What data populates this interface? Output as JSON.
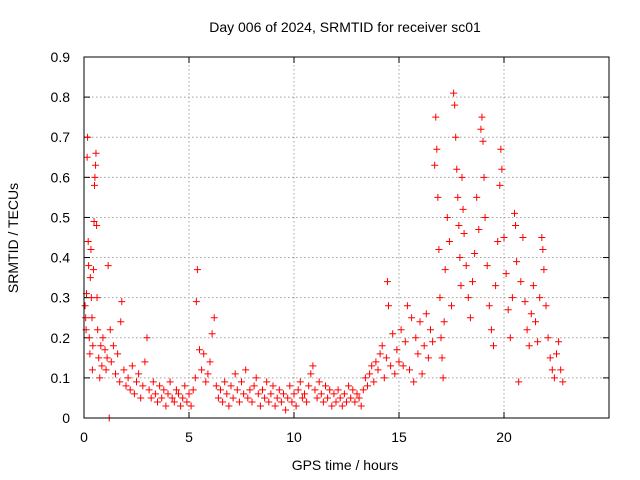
{
  "chart_data": {
    "type": "scatter",
    "title": "Day 006 of 2024, SRMTID for receiver sc01",
    "xlabel": "GPS time / hours",
    "ylabel": "SRMTID / TECUs",
    "xlim": [
      0,
      25
    ],
    "ylim": [
      0,
      0.9
    ],
    "xticks": [
      0,
      5,
      10,
      15,
      20
    ],
    "yticks": [
      0,
      0.1,
      0.2,
      0.3,
      0.4,
      0.5,
      0.6,
      0.7,
      0.8,
      0.9
    ],
    "xtick_labels": [
      "0",
      "5",
      "10",
      "15",
      "20"
    ],
    "ytick_labels": [
      "0",
      "0.1",
      "0.2",
      "0.3",
      "0.4",
      "0.5",
      "0.6",
      "0.7",
      "0.8",
      "0.9"
    ],
    "grid": true,
    "marker": "+",
    "color": "#ff0000",
    "series": [
      {
        "name": "sc01",
        "points": [
          [
            0.05,
            0.28
          ],
          [
            0.08,
            0.25
          ],
          [
            0.1,
            0.22
          ],
          [
            0.12,
            0.31
          ],
          [
            0.15,
            0.65
          ],
          [
            0.17,
            0.7
          ],
          [
            0.2,
            0.44
          ],
          [
            0.22,
            0.38
          ],
          [
            0.25,
            0.2
          ],
          [
            0.28,
            0.16
          ],
          [
            0.3,
            0.35
          ],
          [
            0.33,
            0.42
          ],
          [
            0.35,
            0.3
          ],
          [
            0.38,
            0.25
          ],
          [
            0.4,
            0.12
          ],
          [
            0.42,
            0.18
          ],
          [
            0.45,
            0.37
          ],
          [
            0.48,
            0.49
          ],
          [
            0.5,
            0.58
          ],
          [
            0.52,
            0.6
          ],
          [
            0.55,
            0.63
          ],
          [
            0.57,
            0.66
          ],
          [
            0.6,
            0.48
          ],
          [
            0.62,
            0.3
          ],
          [
            0.65,
            0.22
          ],
          [
            0.7,
            0.15
          ],
          [
            0.75,
            0.1
          ],
          [
            0.8,
            0.18
          ],
          [
            0.85,
            0.13
          ],
          [
            0.9,
            0.2
          ],
          [
            1.0,
            0.17
          ],
          [
            1.05,
            0.12
          ],
          [
            1.1,
            0.15
          ],
          [
            1.15,
            0.38
          ],
          [
            1.2,
            0.0
          ],
          [
            1.25,
            0.22
          ],
          [
            1.3,
            0.14
          ],
          [
            1.4,
            0.18
          ],
          [
            1.5,
            0.11
          ],
          [
            1.6,
            0.16
          ],
          [
            1.7,
            0.09
          ],
          [
            1.75,
            0.24
          ],
          [
            1.8,
            0.29
          ],
          [
            1.9,
            0.12
          ],
          [
            2.0,
            0.08
          ],
          [
            2.1,
            0.1
          ],
          [
            2.2,
            0.07
          ],
          [
            2.3,
            0.13
          ],
          [
            2.4,
            0.06
          ],
          [
            2.5,
            0.09
          ],
          [
            2.6,
            0.11
          ],
          [
            2.7,
            0.05
          ],
          [
            2.8,
            0.08
          ],
          [
            2.9,
            0.14
          ],
          [
            3.0,
            0.2
          ],
          [
            3.1,
            0.07
          ],
          [
            3.2,
            0.05
          ],
          [
            3.3,
            0.09
          ],
          [
            3.4,
            0.06
          ],
          [
            3.5,
            0.04
          ],
          [
            3.6,
            0.08
          ],
          [
            3.7,
            0.05
          ],
          [
            3.8,
            0.07
          ],
          [
            3.9,
            0.03
          ],
          [
            4.0,
            0.06
          ],
          [
            4.1,
            0.09
          ],
          [
            4.2,
            0.05
          ],
          [
            4.3,
            0.04
          ],
          [
            4.4,
            0.07
          ],
          [
            4.5,
            0.06
          ],
          [
            4.6,
            0.03
          ],
          [
            4.7,
            0.05
          ],
          [
            4.8,
            0.08
          ],
          [
            4.9,
            0.04
          ],
          [
            5.0,
            0.06
          ],
          [
            5.1,
            0.03
          ],
          [
            5.2,
            0.07
          ],
          [
            5.3,
            0.1
          ],
          [
            5.35,
            0.29
          ],
          [
            5.4,
            0.37
          ],
          [
            5.5,
            0.17
          ],
          [
            5.6,
            0.12
          ],
          [
            5.7,
            0.16
          ],
          [
            5.8,
            0.09
          ],
          [
            5.9,
            0.11
          ],
          [
            6.0,
            0.14
          ],
          [
            6.1,
            0.21
          ],
          [
            6.2,
            0.25
          ],
          [
            6.3,
            0.08
          ],
          [
            6.4,
            0.05
          ],
          [
            6.5,
            0.07
          ],
          [
            6.6,
            0.04
          ],
          [
            6.7,
            0.09
          ],
          [
            6.8,
            0.06
          ],
          [
            6.9,
            0.03
          ],
          [
            7.0,
            0.08
          ],
          [
            7.1,
            0.05
          ],
          [
            7.2,
            0.11
          ],
          [
            7.3,
            0.07
          ],
          [
            7.4,
            0.04
          ],
          [
            7.5,
            0.09
          ],
          [
            7.6,
            0.06
          ],
          [
            7.7,
            0.12
          ],
          [
            7.8,
            0.05
          ],
          [
            7.9,
            0.07
          ],
          [
            8.0,
            0.04
          ],
          [
            8.1,
            0.08
          ],
          [
            8.2,
            0.1
          ],
          [
            8.3,
            0.06
          ],
          [
            8.4,
            0.03
          ],
          [
            8.5,
            0.07
          ],
          [
            8.6,
            0.05
          ],
          [
            8.7,
            0.09
          ],
          [
            8.8,
            0.04
          ],
          [
            8.9,
            0.06
          ],
          [
            9.0,
            0.08
          ],
          [
            9.1,
            0.03
          ],
          [
            9.2,
            0.05
          ],
          [
            9.3,
            0.07
          ],
          [
            9.4,
            0.04
          ],
          [
            9.5,
            0.06
          ],
          [
            9.6,
            0.02
          ],
          [
            9.7,
            0.05
          ],
          [
            9.8,
            0.08
          ],
          [
            9.9,
            0.04
          ],
          [
            10.0,
            0.06
          ],
          [
            10.1,
            0.03
          ],
          [
            10.2,
            0.07
          ],
          [
            10.3,
            0.09
          ],
          [
            10.4,
            0.05
          ],
          [
            10.5,
            0.06
          ],
          [
            10.6,
            0.04
          ],
          [
            10.7,
            0.08
          ],
          [
            10.8,
            0.11
          ],
          [
            10.9,
            0.13
          ],
          [
            11.0,
            0.07
          ],
          [
            11.1,
            0.05
          ],
          [
            11.2,
            0.09
          ],
          [
            11.3,
            0.06
          ],
          [
            11.4,
            0.04
          ],
          [
            11.5,
            0.08
          ],
          [
            11.6,
            0.05
          ],
          [
            11.7,
            0.07
          ],
          [
            11.8,
            0.03
          ],
          [
            11.9,
            0.06
          ],
          [
            12.0,
            0.04
          ],
          [
            12.1,
            0.07
          ],
          [
            12.2,
            0.05
          ],
          [
            12.3,
            0.03
          ],
          [
            12.4,
            0.06
          ],
          [
            12.5,
            0.04
          ],
          [
            12.6,
            0.08
          ],
          [
            12.7,
            0.05
          ],
          [
            12.8,
            0.07
          ],
          [
            12.9,
            0.04
          ],
          [
            13.0,
            0.06
          ],
          [
            13.1,
            0.05
          ],
          [
            13.2,
            0.03
          ],
          [
            13.3,
            0.07
          ],
          [
            13.4,
            0.1
          ],
          [
            13.5,
            0.08
          ],
          [
            13.6,
            0.11
          ],
          [
            13.7,
            0.13
          ],
          [
            13.8,
            0.09
          ],
          [
            13.9,
            0.14
          ],
          [
            14.0,
            0.12
          ],
          [
            14.1,
            0.16
          ],
          [
            14.2,
            0.18
          ],
          [
            14.3,
            0.1
          ],
          [
            14.4,
            0.15
          ],
          [
            14.45,
            0.34
          ],
          [
            14.5,
            0.28
          ],
          [
            14.6,
            0.13
          ],
          [
            14.7,
            0.21
          ],
          [
            14.8,
            0.11
          ],
          [
            14.9,
            0.17
          ],
          [
            15.0,
            0.14
          ],
          [
            15.1,
            0.22
          ],
          [
            15.2,
            0.13
          ],
          [
            15.3,
            0.19
          ],
          [
            15.4,
            0.28
          ],
          [
            15.5,
            0.12
          ],
          [
            15.6,
            0.25
          ],
          [
            15.7,
            0.09
          ],
          [
            15.8,
            0.2
          ],
          [
            15.9,
            0.16
          ],
          [
            16.0,
            0.24
          ],
          [
            16.1,
            0.11
          ],
          [
            16.2,
            0.18
          ],
          [
            16.3,
            0.26
          ],
          [
            16.4,
            0.15
          ],
          [
            16.5,
            0.22
          ],
          [
            16.6,
            0.19
          ],
          [
            16.7,
            0.63
          ],
          [
            16.75,
            0.75
          ],
          [
            16.8,
            0.67
          ],
          [
            16.85,
            0.55
          ],
          [
            16.9,
            0.42
          ],
          [
            16.95,
            0.3
          ],
          [
            17.0,
            0.2
          ],
          [
            17.05,
            0.15
          ],
          [
            17.1,
            0.1
          ],
          [
            17.15,
            0.24
          ],
          [
            17.2,
            0.37
          ],
          [
            17.3,
            0.5
          ],
          [
            17.4,
            0.44
          ],
          [
            17.5,
            0.28
          ],
          [
            17.6,
            0.81
          ],
          [
            17.65,
            0.78
          ],
          [
            17.7,
            0.7
          ],
          [
            17.75,
            0.62
          ],
          [
            17.8,
            0.55
          ],
          [
            17.85,
            0.48
          ],
          [
            17.9,
            0.4
          ],
          [
            17.95,
            0.33
          ],
          [
            18.0,
            0.6
          ],
          [
            18.05,
            0.52
          ],
          [
            18.1,
            0.46
          ],
          [
            18.2,
            0.38
          ],
          [
            18.3,
            0.3
          ],
          [
            18.4,
            0.25
          ],
          [
            18.5,
            0.34
          ],
          [
            18.6,
            0.41
          ],
          [
            18.7,
            0.55
          ],
          [
            18.8,
            0.47
          ],
          [
            18.9,
            0.72
          ],
          [
            18.95,
            0.75
          ],
          [
            19.0,
            0.69
          ],
          [
            19.05,
            0.6
          ],
          [
            19.1,
            0.5
          ],
          [
            19.2,
            0.38
          ],
          [
            19.3,
            0.28
          ],
          [
            19.4,
            0.22
          ],
          [
            19.5,
            0.18
          ],
          [
            19.6,
            0.33
          ],
          [
            19.7,
            0.44
          ],
          [
            19.8,
            0.58
          ],
          [
            19.85,
            0.67
          ],
          [
            19.9,
            0.62
          ],
          [
            20.0,
            0.45
          ],
          [
            20.1,
            0.36
          ],
          [
            20.2,
            0.27
          ],
          [
            20.3,
            0.2
          ],
          [
            20.4,
            0.3
          ],
          [
            20.5,
            0.51
          ],
          [
            20.55,
            0.48
          ],
          [
            20.6,
            0.39
          ],
          [
            20.7,
            0.09
          ],
          [
            20.8,
            0.34
          ],
          [
            20.9,
            0.45
          ],
          [
            21.0,
            0.29
          ],
          [
            21.1,
            0.22
          ],
          [
            21.2,
            0.18
          ],
          [
            21.3,
            0.26
          ],
          [
            21.4,
            0.33
          ],
          [
            21.5,
            0.24
          ],
          [
            21.6,
            0.19
          ],
          [
            21.7,
            0.3
          ],
          [
            21.8,
            0.45
          ],
          [
            21.85,
            0.42
          ],
          [
            21.9,
            0.37
          ],
          [
            22.0,
            0.28
          ],
          [
            22.1,
            0.2
          ],
          [
            22.2,
            0.15
          ],
          [
            22.3,
            0.12
          ],
          [
            22.4,
            0.1
          ],
          [
            22.5,
            0.16
          ],
          [
            22.6,
            0.19
          ],
          [
            22.7,
            0.12
          ],
          [
            22.8,
            0.09
          ]
        ]
      }
    ]
  }
}
